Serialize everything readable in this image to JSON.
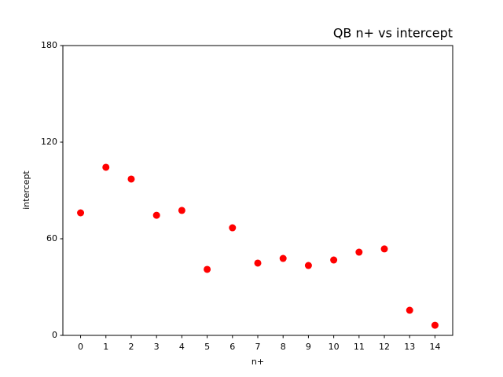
{
  "chart_data": {
    "type": "scatter",
    "title": "QB n+ vs intercept",
    "xlabel": "n+",
    "ylabel": "intercept",
    "x": [
      0,
      1,
      2,
      3,
      4,
      5,
      6,
      7,
      8,
      9,
      10,
      11,
      12,
      13,
      14
    ],
    "values": [
      76.1,
      104.4,
      97.1,
      74.6,
      77.6,
      41.0,
      66.8,
      44.9,
      47.8,
      43.4,
      46.8,
      51.7,
      53.7,
      15.6,
      6.3
    ],
    "color": "#ff0000",
    "xlim": [
      -0.7,
      14.7
    ],
    "xticks": [
      0,
      1,
      2,
      3,
      4,
      5,
      6,
      7,
      8,
      9,
      10,
      11,
      12,
      13,
      14
    ],
    "ylim": [
      0,
      180
    ],
    "yticks": [
      0,
      60,
      120,
      180
    ]
  }
}
